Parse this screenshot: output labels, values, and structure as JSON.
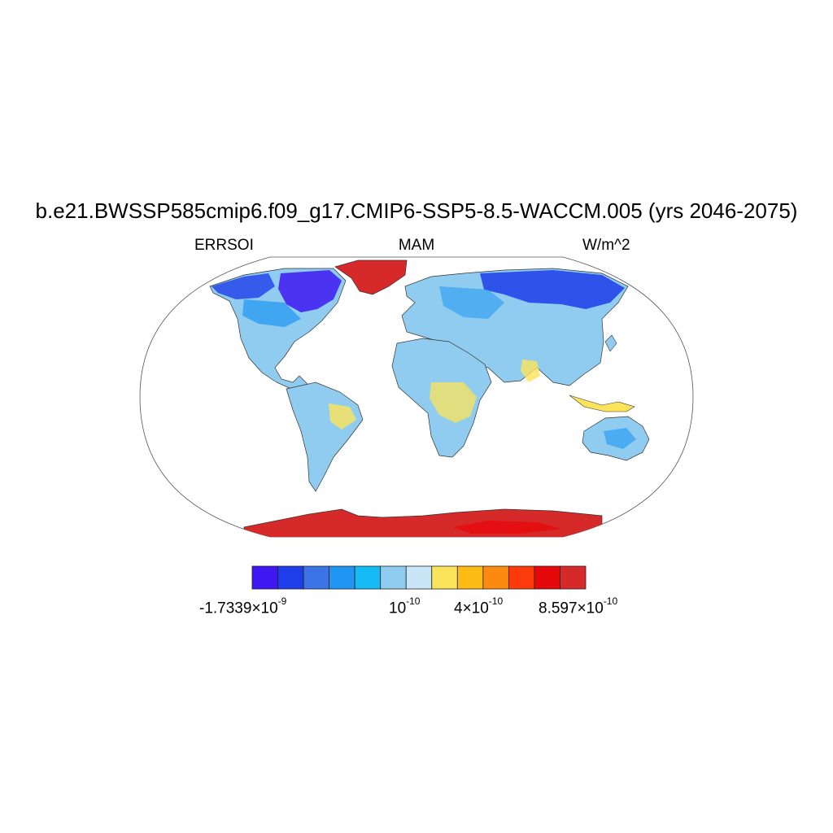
{
  "title": "b.e21.BWSSP585cmip6.f09_g17.CMIP6-SSP5-8.5-WACCM.005 (yrs 2046-2075)",
  "left_label": "ERRSOI",
  "center_label": "MAM",
  "right_label": "W/m^2",
  "colorbar": {
    "colors": [
      "#3f17f2",
      "#1f3de9",
      "#3a74e6",
      "#1e96f2",
      "#14bbf5",
      "#8fccef",
      "#c9e6f7",
      "#fce45a",
      "#fcbc14",
      "#fb8a0e",
      "#fc3a0c",
      "#e6090b",
      "#d62929"
    ],
    "labels": [
      {
        "mantissa": "-1.7339×10",
        "exp": "-9"
      },
      {
        "mantissa": "10",
        "exp": "-10"
      },
      {
        "mantissa": "4×10",
        "exp": "-10"
      },
      {
        "mantissa": "8.597×10",
        "exp": "-10"
      }
    ]
  }
}
